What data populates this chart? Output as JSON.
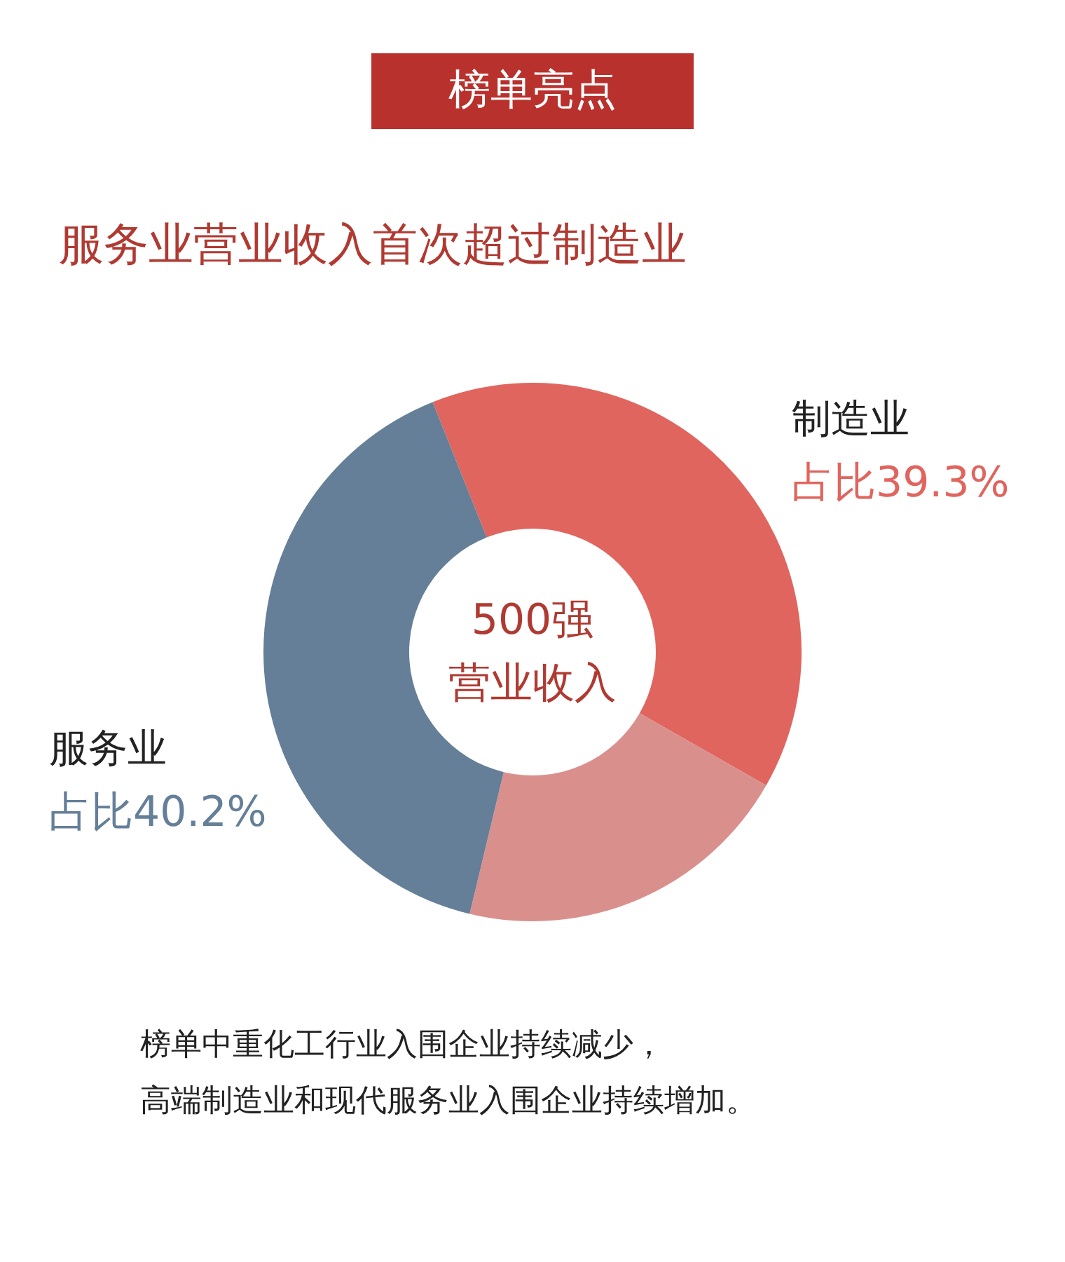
{
  "chart_data": {
    "type": "donut",
    "title": "榜单亮点",
    "subtitle": "服务业营业收入首次超过制造业",
    "categories": [
      "制造业",
      null,
      "服务业"
    ],
    "values": [
      39.3,
      20.5,
      40.2
    ],
    "colors": [
      "#e0655e",
      "#d9908d",
      "#657f99"
    ],
    "value_labels": [
      "占比39.3%",
      null,
      "占比40.2%"
    ],
    "annotations": [
      "500强",
      "营业收入",
      "榜单中重化工行业入围企业持续减少，",
      "高端制造业和现代服务业入围企业持续增加。"
    ]
  }
}
